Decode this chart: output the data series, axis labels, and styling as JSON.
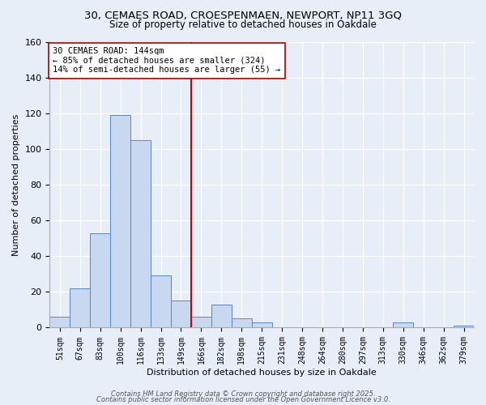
{
  "title": "30, CEMAES ROAD, CROESPENMAEN, NEWPORT, NP11 3GQ",
  "subtitle": "Size of property relative to detached houses in Oakdale",
  "xlabel": "Distribution of detached houses by size in Oakdale",
  "ylabel": "Number of detached properties",
  "bin_labels": [
    "51sqm",
    "67sqm",
    "83sqm",
    "100sqm",
    "116sqm",
    "133sqm",
    "149sqm",
    "166sqm",
    "182sqm",
    "198sqm",
    "215sqm",
    "231sqm",
    "248sqm",
    "264sqm",
    "280sqm",
    "297sqm",
    "313sqm",
    "330sqm",
    "346sqm",
    "362sqm",
    "379sqm"
  ],
  "bar_values": [
    6,
    22,
    53,
    119,
    105,
    29,
    15,
    6,
    13,
    5,
    3,
    0,
    0,
    0,
    0,
    0,
    0,
    3,
    0,
    0,
    1
  ],
  "bar_color": "#c8d8f0",
  "bar_edge_color": "#5588cc",
  "vline_x": 7,
  "vline_color": "#cc0000",
  "annotation_line1": "30 CEMAES ROAD: 144sqm",
  "annotation_line2": "← 85% of detached houses are smaller (324)",
  "annotation_line3": "14% of semi-detached houses are larger (55) →",
  "annotation_box_color": "#ffffff",
  "annotation_box_edge": "#aa0000",
  "ylim": [
    0,
    160
  ],
  "yticks": [
    0,
    20,
    40,
    60,
    80,
    100,
    120,
    140,
    160
  ],
  "footer1": "Contains HM Land Registry data © Crown copyright and database right 2025.",
  "footer2": "Contains public sector information licensed under the Open Government Licence v3.0.",
  "background_color": "#e8eef8",
  "plot_bg_color": "#e8eef8",
  "grid_color": "#ffffff"
}
